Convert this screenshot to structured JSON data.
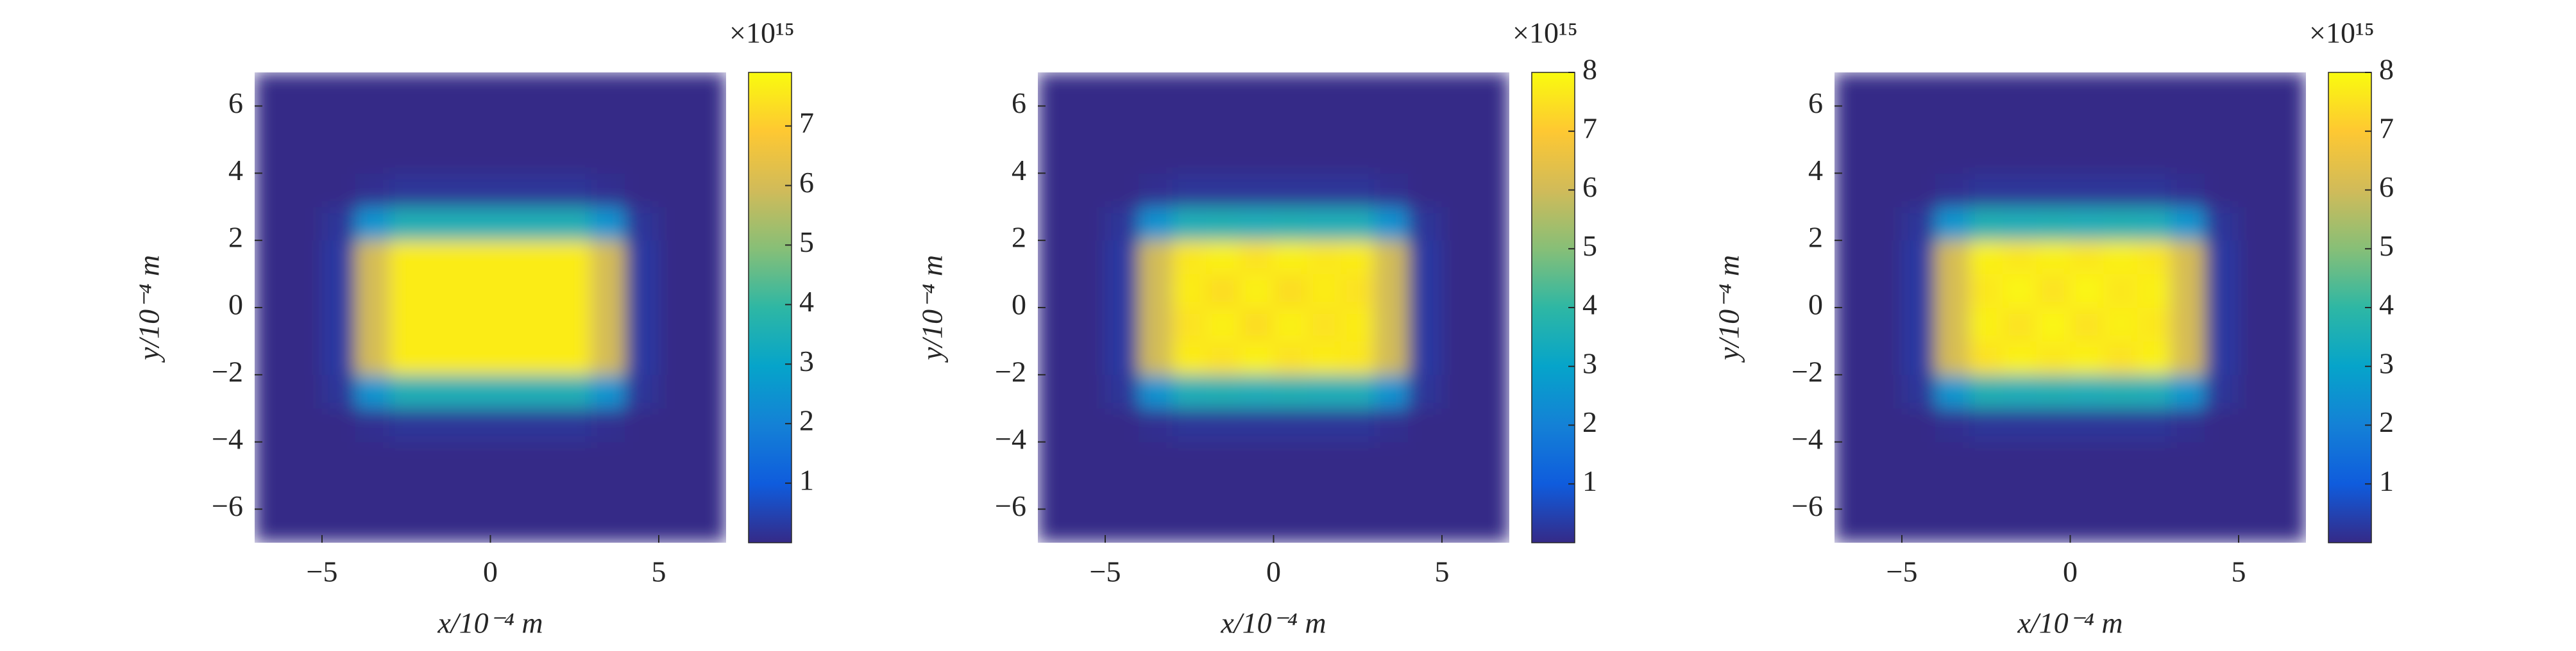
{
  "chart_data": [
    {
      "type": "heatmap",
      "xlabel": "x/10⁻⁴ m",
      "ylabel": "y/10⁻⁴ m",
      "colorbar_label": "×10¹⁵",
      "xlim": [
        -7,
        7
      ],
      "ylim": [
        -7,
        7
      ],
      "clim": [
        0,
        7.9
      ],
      "xticks": [
        {
          "value": -5,
          "label": "−5"
        },
        0,
        5
      ],
      "yticks": [
        {
          "value": -6,
          "label": "−6"
        },
        {
          "value": -4,
          "label": "−4"
        },
        {
          "value": -2,
          "label": "−2"
        },
        0,
        2,
        4,
        6
      ],
      "cticks": [
        1,
        2,
        3,
        4,
        5,
        6,
        7
      ],
      "x": [
        -6.5,
        -5.5,
        -4.5,
        -3.5,
        -2.5,
        -1.5,
        -0.5,
        0.5,
        1.5,
        2.5,
        3.5,
        4.5,
        5.5,
        6.5
      ],
      "y": [
        -6.5,
        -5.5,
        -4.5,
        -3.5,
        -2.5,
        -1.5,
        -0.5,
        0.5,
        1.5,
        2.5,
        3.5,
        4.5,
        5.5,
        6.5
      ],
      "z": [
        [
          0,
          0,
          0,
          0,
          0,
          0,
          0,
          0,
          0,
          0,
          0,
          0,
          0,
          0
        ],
        [
          0,
          0,
          0,
          0,
          0,
          0,
          0,
          0,
          0,
          0,
          0,
          0,
          0,
          0
        ],
        [
          0,
          0,
          0,
          0,
          0,
          0,
          0,
          0,
          0,
          0,
          0,
          0,
          0,
          0
        ],
        [
          0,
          0,
          0,
          0.1,
          0.2,
          0.2,
          0.2,
          0.2,
          0.2,
          0.2,
          0.1,
          0,
          0,
          0
        ],
        [
          0,
          0,
          0.2,
          2.5,
          3.5,
          3.5,
          3.5,
          3.5,
          3.5,
          3.5,
          2.5,
          0.2,
          0,
          0
        ],
        [
          0,
          0,
          0.3,
          6,
          7.6,
          7.6,
          7.6,
          7.6,
          7.6,
          7.6,
          6,
          0.3,
          0,
          0
        ],
        [
          0,
          0,
          0.3,
          6,
          7.6,
          7.6,
          7.6,
          7.6,
          7.6,
          7.6,
          6,
          0.3,
          0,
          0
        ],
        [
          0,
          0,
          0.3,
          6,
          7.6,
          7.6,
          7.6,
          7.6,
          7.6,
          7.6,
          6,
          0.3,
          0,
          0
        ],
        [
          0,
          0,
          0.3,
          6,
          7.6,
          7.6,
          7.6,
          7.6,
          7.6,
          7.6,
          6,
          0.3,
          0,
          0
        ],
        [
          0,
          0,
          0.2,
          2.5,
          3.5,
          3.5,
          3.5,
          3.5,
          3.5,
          3.5,
          2.5,
          0.2,
          0,
          0
        ],
        [
          0,
          0,
          0,
          0.1,
          0.2,
          0.2,
          0.2,
          0.2,
          0.2,
          0.2,
          0.1,
          0,
          0,
          0
        ],
        [
          0,
          0,
          0,
          0,
          0,
          0,
          0,
          0,
          0,
          0,
          0,
          0,
          0,
          0
        ],
        [
          0,
          0,
          0,
          0,
          0,
          0,
          0,
          0,
          0,
          0,
          0,
          0,
          0,
          0
        ],
        [
          0,
          0,
          0,
          0,
          0,
          0,
          0,
          0,
          0,
          0,
          0,
          0,
          0,
          0
        ]
      ]
    },
    {
      "type": "heatmap",
      "xlabel": "x/10⁻⁴ m",
      "ylabel": "y/10⁻⁴ m",
      "colorbar_label": "×10¹⁵",
      "xlim": [
        -7,
        7
      ],
      "ylim": [
        -7,
        7
      ],
      "clim": [
        0,
        8
      ],
      "xticks": [
        {
          "value": -5,
          "label": "−5"
        },
        0,
        5
      ],
      "yticks": [
        {
          "value": -6,
          "label": "−6"
        },
        {
          "value": -4,
          "label": "−4"
        },
        {
          "value": -2,
          "label": "−2"
        },
        0,
        2,
        4,
        6
      ],
      "cticks": [
        1,
        2,
        3,
        4,
        5,
        6,
        7,
        8
      ],
      "x": [
        -6.5,
        -5.5,
        -4.5,
        -3.5,
        -2.5,
        -1.5,
        -0.5,
        0.5,
        1.5,
        2.5,
        3.5,
        4.5,
        5.5,
        6.5
      ],
      "y": [
        -6.5,
        -5.5,
        -4.5,
        -3.5,
        -2.5,
        -1.5,
        -0.5,
        0.5,
        1.5,
        2.5,
        3.5,
        4.5,
        5.5,
        6.5
      ],
      "z": [
        [
          0,
          0,
          0,
          0,
          0,
          0,
          0,
          0,
          0,
          0,
          0,
          0,
          0,
          0
        ],
        [
          0,
          0,
          0,
          0,
          0,
          0,
          0,
          0,
          0,
          0,
          0,
          0,
          0,
          0
        ],
        [
          0,
          0,
          0,
          0,
          0,
          0,
          0,
          0,
          0,
          0,
          0,
          0,
          0,
          0
        ],
        [
          0,
          0,
          0,
          0.1,
          0.2,
          0.2,
          0.2,
          0.2,
          0.2,
          0.2,
          0.1,
          0,
          0,
          0
        ],
        [
          0,
          0,
          0.2,
          2.5,
          3.5,
          3.6,
          3.5,
          3.6,
          3.5,
          3.5,
          2.5,
          0.2,
          0,
          0
        ],
        [
          0,
          0,
          0.3,
          6,
          7.7,
          7.5,
          7.8,
          7.5,
          7.7,
          7.6,
          6,
          0.3,
          0,
          0
        ],
        [
          0,
          0,
          0.3,
          6,
          7.5,
          7.8,
          7.4,
          7.8,
          7.5,
          7.7,
          6,
          0.3,
          0,
          0
        ],
        [
          0,
          0,
          0.3,
          6,
          7.7,
          7.4,
          7.8,
          7.4,
          7.7,
          7.5,
          6,
          0.3,
          0,
          0
        ],
        [
          0,
          0,
          0.3,
          6,
          7.6,
          7.8,
          7.5,
          7.8,
          7.6,
          7.7,
          6,
          0.3,
          0,
          0
        ],
        [
          0,
          0,
          0.2,
          2.5,
          3.5,
          3.6,
          3.5,
          3.6,
          3.5,
          3.5,
          2.5,
          0.2,
          0,
          0
        ],
        [
          0,
          0,
          0,
          0.1,
          0.2,
          0.2,
          0.2,
          0.2,
          0.2,
          0.2,
          0.1,
          0,
          0,
          0
        ],
        [
          0,
          0,
          0,
          0,
          0,
          0,
          0,
          0,
          0,
          0,
          0,
          0,
          0,
          0
        ],
        [
          0,
          0,
          0,
          0,
          0,
          0,
          0,
          0,
          0,
          0,
          0,
          0,
          0,
          0
        ],
        [
          0,
          0,
          0,
          0,
          0,
          0,
          0,
          0,
          0,
          0,
          0,
          0,
          0,
          0
        ]
      ]
    },
    {
      "type": "heatmap",
      "xlabel": "x/10⁻⁴ m",
      "ylabel": "y/10⁻⁴ m",
      "colorbar_label": "×10¹⁵",
      "xlim": [
        -7,
        7
      ],
      "ylim": [
        -7,
        7
      ],
      "clim": [
        0,
        8
      ],
      "xticks": [
        {
          "value": -5,
          "label": "−5"
        },
        0,
        5
      ],
      "yticks": [
        {
          "value": -6,
          "label": "−6"
        },
        {
          "value": -4,
          "label": "−4"
        },
        {
          "value": -2,
          "label": "−2"
        },
        0,
        2,
        4,
        6
      ],
      "cticks": [
        1,
        2,
        3,
        4,
        5,
        6,
        7,
        8
      ],
      "x": [
        -6.5,
        -5.5,
        -4.5,
        -3.5,
        -2.5,
        -1.5,
        -0.5,
        0.5,
        1.5,
        2.5,
        3.5,
        4.5,
        5.5,
        6.5
      ],
      "y": [
        -6.5,
        -5.5,
        -4.5,
        -3.5,
        -2.5,
        -1.5,
        -0.5,
        0.5,
        1.5,
        2.5,
        3.5,
        4.5,
        5.5,
        6.5
      ],
      "z": [
        [
          0,
          0,
          0,
          0,
          0,
          0,
          0,
          0,
          0,
          0,
          0,
          0,
          0,
          0
        ],
        [
          0,
          0,
          0,
          0,
          0,
          0,
          0,
          0,
          0,
          0,
          0,
          0,
          0,
          0
        ],
        [
          0,
          0,
          0,
          0,
          0,
          0,
          0,
          0,
          0,
          0,
          0,
          0,
          0,
          0
        ],
        [
          0,
          0,
          0,
          0.1,
          0.2,
          0.2,
          0.2,
          0.2,
          0.2,
          0.2,
          0.1,
          0,
          0,
          0
        ],
        [
          0,
          0,
          0.2,
          2.6,
          3.6,
          3.5,
          3.6,
          3.5,
          3.6,
          3.5,
          2.6,
          0.2,
          0,
          0
        ],
        [
          0,
          0,
          0.3,
          6.1,
          7.5,
          7.8,
          7.6,
          7.8,
          7.5,
          7.8,
          6.1,
          0.3,
          0,
          0
        ],
        [
          0,
          0,
          0.3,
          6.1,
          7.8,
          7.5,
          7.9,
          7.5,
          7.8,
          7.6,
          6.1,
          0.3,
          0,
          0
        ],
        [
          0,
          0,
          0.3,
          6.1,
          7.6,
          7.9,
          7.5,
          7.9,
          7.6,
          7.8,
          6.1,
          0.3,
          0,
          0
        ],
        [
          0,
          0,
          0.3,
          6.1,
          7.8,
          7.6,
          7.8,
          7.6,
          7.8,
          7.6,
          6.1,
          0.3,
          0,
          0
        ],
        [
          0,
          0,
          0.2,
          2.6,
          3.6,
          3.5,
          3.6,
          3.5,
          3.6,
          3.5,
          2.6,
          0.2,
          0,
          0
        ],
        [
          0,
          0,
          0,
          0.1,
          0.2,
          0.2,
          0.2,
          0.2,
          0.2,
          0.2,
          0.1,
          0,
          0,
          0
        ],
        [
          0,
          0,
          0,
          0,
          0,
          0,
          0,
          0,
          0,
          0,
          0,
          0,
          0,
          0
        ],
        [
          0,
          0,
          0,
          0,
          0,
          0,
          0,
          0,
          0,
          0,
          0,
          0,
          0,
          0
        ],
        [
          0,
          0,
          0,
          0,
          0,
          0,
          0,
          0,
          0,
          0,
          0,
          0,
          0,
          0
        ]
      ]
    }
  ]
}
